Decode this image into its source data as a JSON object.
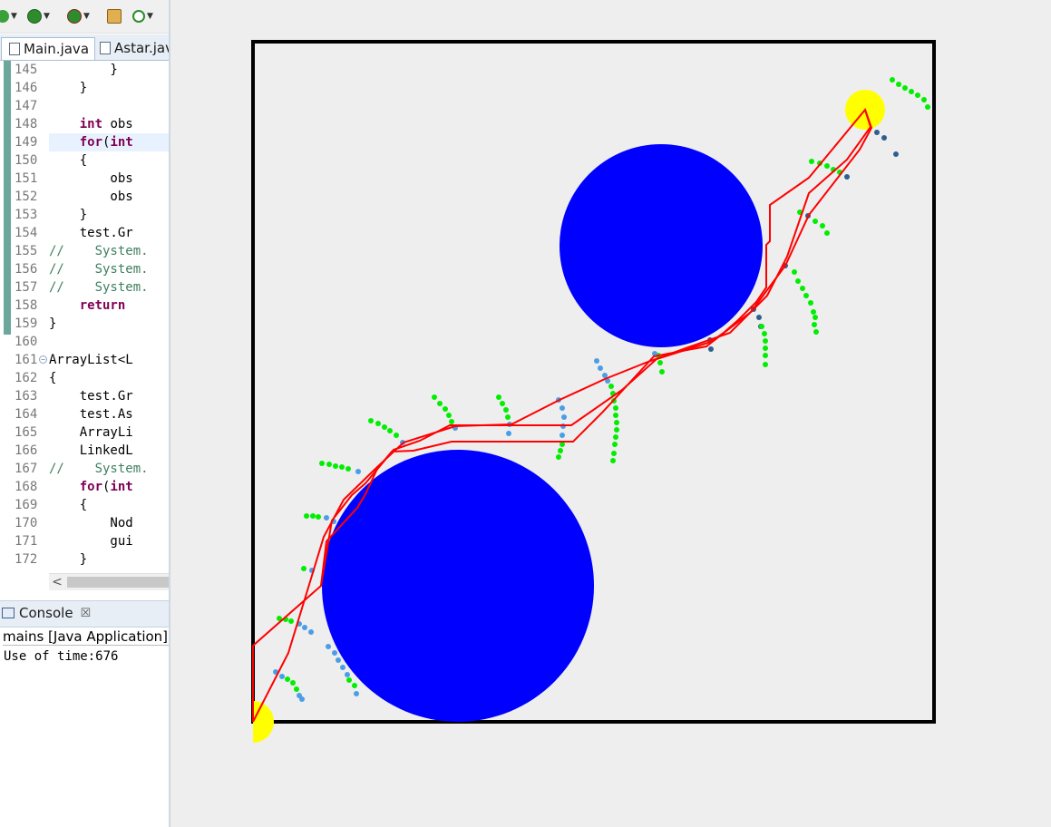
{
  "editor": {
    "tabs": [
      {
        "label": "Main.java"
      },
      {
        "label": "Astar.java"
      }
    ],
    "lines": [
      {
        "num": "145",
        "code": [
          {
            "t": "        }",
            "c": ""
          }
        ]
      },
      {
        "num": "146",
        "code": [
          {
            "t": "    }",
            "c": ""
          }
        ]
      },
      {
        "num": "147",
        "code": [
          {
            "t": "",
            "c": ""
          }
        ]
      },
      {
        "num": "148",
        "code": [
          {
            "t": "    ",
            "c": ""
          },
          {
            "t": "int",
            "c": "kw"
          },
          {
            "t": " obs",
            "c": ""
          }
        ]
      },
      {
        "num": "149",
        "code": [
          {
            "t": "    ",
            "c": ""
          },
          {
            "t": "for",
            "c": "kw"
          },
          {
            "t": "(",
            "c": ""
          },
          {
            "t": "int",
            "c": "kw"
          }
        ],
        "highlight": true
      },
      {
        "num": "150",
        "code": [
          {
            "t": "    {",
            "c": ""
          }
        ]
      },
      {
        "num": "151",
        "code": [
          {
            "t": "        obs",
            "c": ""
          }
        ]
      },
      {
        "num": "152",
        "code": [
          {
            "t": "        obs",
            "c": ""
          }
        ]
      },
      {
        "num": "153",
        "code": [
          {
            "t": "    }",
            "c": ""
          }
        ]
      },
      {
        "num": "154",
        "code": [
          {
            "t": "    test.Gr",
            "c": ""
          }
        ]
      },
      {
        "num": "155",
        "code": [
          {
            "t": "//    System.",
            "c": "cm"
          }
        ]
      },
      {
        "num": "156",
        "code": [
          {
            "t": "//    System.",
            "c": "cm"
          }
        ]
      },
      {
        "num": "157",
        "code": [
          {
            "t": "//    System.",
            "c": "cm"
          }
        ]
      },
      {
        "num": "158",
        "code": [
          {
            "t": "    ",
            "c": ""
          },
          {
            "t": "return",
            "c": "kw"
          }
        ]
      },
      {
        "num": "159",
        "code": [
          {
            "t": "}",
            "c": ""
          }
        ]
      },
      {
        "num": "160",
        "code": [
          {
            "t": "",
            "c": ""
          }
        ]
      },
      {
        "num": "161",
        "code": [
          {
            "t": "ArrayList<L",
            "c": ""
          }
        ],
        "fold": true
      },
      {
        "num": "162",
        "code": [
          {
            "t": "{",
            "c": ""
          }
        ]
      },
      {
        "num": "163",
        "code": [
          {
            "t": "    test.Gr",
            "c": ""
          }
        ]
      },
      {
        "num": "164",
        "code": [
          {
            "t": "    test.As",
            "c": ""
          }
        ]
      },
      {
        "num": "165",
        "code": [
          {
            "t": "    ArrayLi",
            "c": ""
          }
        ]
      },
      {
        "num": "166",
        "code": [
          {
            "t": "    LinkedL",
            "c": ""
          }
        ]
      },
      {
        "num": "167",
        "code": [
          {
            "t": "//    System.",
            "c": "cm"
          }
        ]
      },
      {
        "num": "168",
        "code": [
          {
            "t": "    ",
            "c": ""
          },
          {
            "t": "for",
            "c": "kw"
          },
          {
            "t": "(",
            "c": ""
          },
          {
            "t": "int",
            "c": "kw"
          }
        ]
      },
      {
        "num": "169",
        "code": [
          {
            "t": "    {",
            "c": ""
          }
        ]
      },
      {
        "num": "170",
        "code": [
          {
            "t": "        Nod",
            "c": ""
          }
        ]
      },
      {
        "num": "171",
        "code": [
          {
            "t": "        gui",
            "c": ""
          }
        ]
      },
      {
        "num": "172",
        "code": [
          {
            "t": "    }",
            "c": ""
          }
        ]
      }
    ],
    "scroll_left_glyph": "<"
  },
  "console": {
    "tab_label": "Console",
    "close_glyph": "☒",
    "description": "mains [Java Application] C",
    "output": "Use of time:676"
  },
  "toolbar": {
    "icons": [
      "debug-icon",
      "run-icon",
      "external-tools-icon",
      "package-icon",
      "refresh-icon"
    ]
  },
  "colors": {
    "obstacle": "#0000ff",
    "endpoint": "#ffff00",
    "path": "#ff0000",
    "frontier_green": "#00ee00",
    "frontier_blue": "#4a9ee6",
    "frontier_dark": "#2f5f8f",
    "boundary": "#000000",
    "canvas_bg": "#eeeeee"
  }
}
